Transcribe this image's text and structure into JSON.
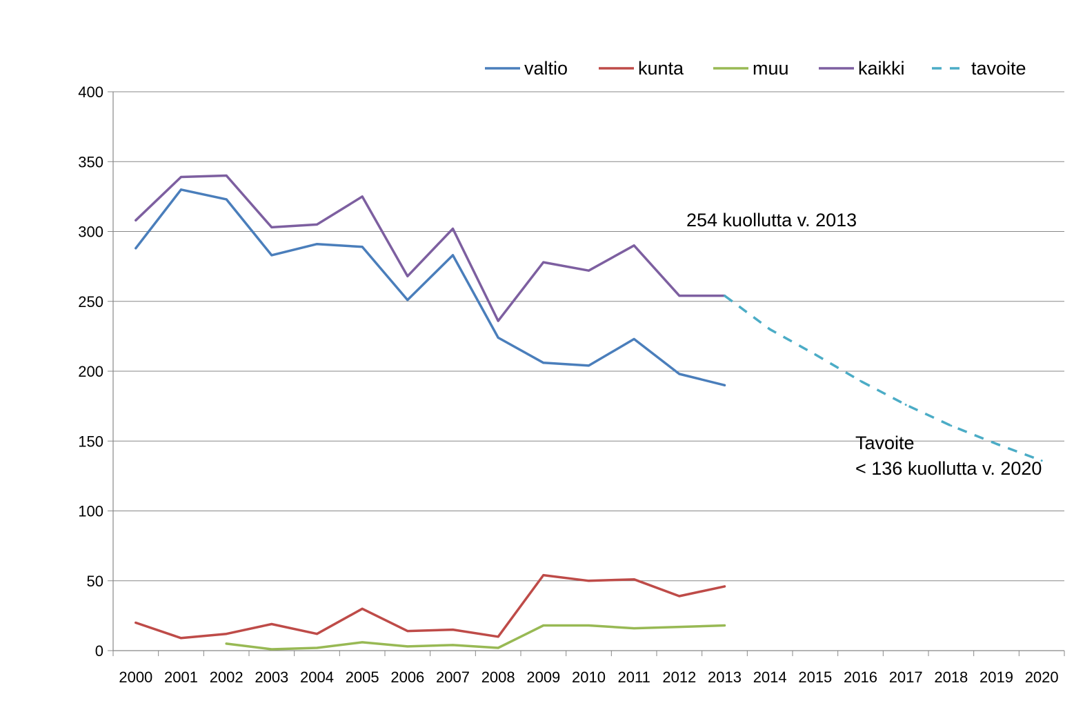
{
  "chart_data": {
    "type": "line",
    "title": "",
    "xlabel": "",
    "ylabel": "",
    "x": [
      "2000",
      "2001",
      "2002",
      "2003",
      "2004",
      "2005",
      "2006",
      "2007",
      "2008",
      "2009",
      "2010",
      "2011",
      "2012",
      "2013",
      "2014",
      "2015",
      "2016",
      "2017",
      "2018",
      "2019",
      "2020"
    ],
    "ylim": [
      0,
      400
    ],
    "yticks": [
      0,
      50,
      100,
      150,
      200,
      250,
      300,
      350,
      400
    ],
    "grid": "horizontal",
    "legend_position": "top-right",
    "series": [
      {
        "name": "valtio",
        "color": "#4a7ebb",
        "style": "solid",
        "values": [
          288,
          330,
          323,
          283,
          291,
          289,
          251,
          283,
          224,
          206,
          204,
          223,
          198,
          190,
          null,
          null,
          null,
          null,
          null,
          null,
          null
        ]
      },
      {
        "name": "kunta",
        "color": "#be4b48",
        "style": "solid",
        "values": [
          20,
          9,
          12,
          19,
          12,
          30,
          14,
          15,
          10,
          54,
          50,
          51,
          39,
          46,
          null,
          null,
          null,
          null,
          null,
          null,
          null
        ]
      },
      {
        "name": "muu",
        "color": "#98b954",
        "style": "solid",
        "values": [
          null,
          null,
          5,
          1,
          2,
          6,
          3,
          4,
          2,
          18,
          18,
          16,
          17,
          18,
          null,
          null,
          null,
          null,
          null,
          null,
          null
        ]
      },
      {
        "name": "kaikki",
        "color": "#7d5fa0",
        "style": "solid",
        "values": [
          308,
          339,
          340,
          303,
          305,
          325,
          268,
          302,
          236,
          278,
          272,
          290,
          254,
          254,
          null,
          null,
          null,
          null,
          null,
          null,
          null
        ]
      },
      {
        "name": "tavoite",
        "color": "#4bacc6",
        "style": "dashed",
        "values": [
          null,
          null,
          null,
          null,
          null,
          null,
          null,
          null,
          null,
          null,
          null,
          null,
          null,
          254,
          230,
          212,
          193,
          176,
          161,
          148,
          136
        ]
      }
    ],
    "annotations": [
      {
        "id": "ann_2013",
        "lines": [
          "254 kuollutta v. 2013"
        ]
      },
      {
        "id": "ann_2020",
        "lines": [
          "Tavoite",
          "< 136 kuollutta v. 2020"
        ]
      }
    ]
  }
}
